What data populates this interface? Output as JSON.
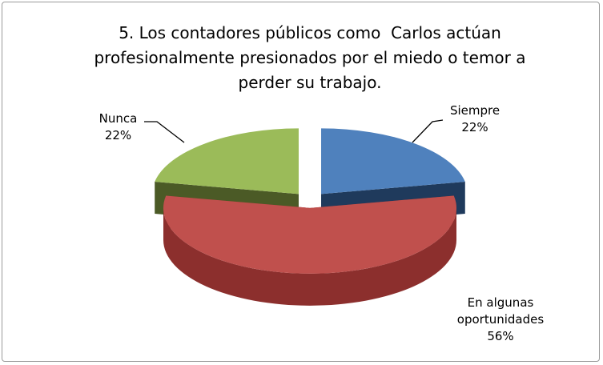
{
  "chart_data": {
    "type": "pie3d",
    "title": "5. Los contadores públicos como  Carlos actúan profesionalmente presionados por el miedo o temor a perder su trabajo.",
    "categories": [
      "Siempre",
      "En algunas oportunidades",
      "Nunca"
    ],
    "values": [
      22,
      56,
      22
    ],
    "value_labels": [
      "22%",
      "56%",
      "22%"
    ],
    "colors": [
      "#4f81bd",
      "#c0504d",
      "#9bbb59"
    ],
    "side_colors": [
      "#1f3a5c",
      "#8c2f2d",
      "#4b5a26"
    ]
  }
}
